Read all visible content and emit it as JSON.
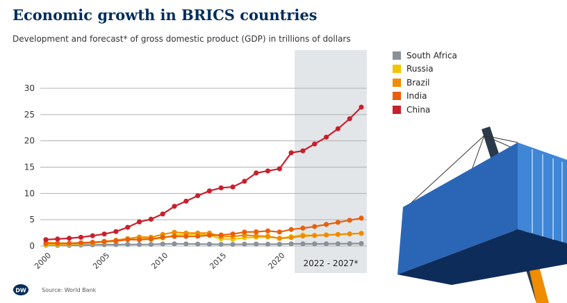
{
  "header": {
    "title": "Economic growth in BRICS countries",
    "subtitle": "Development and forecast* of gross domestic product (GDP) in trillions of dollars"
  },
  "footer": {
    "source": "Source: World Bank",
    "logo_text": "DW"
  },
  "forecast_label": "2022 - 2027*",
  "colors": {
    "grid": "#b0b0b0",
    "forecast_band": "#e3e6e9"
  },
  "chart_data": {
    "type": "line",
    "x": [
      2000,
      2001,
      2002,
      2003,
      2004,
      2005,
      2006,
      2007,
      2008,
      2009,
      2010,
      2011,
      2012,
      2013,
      2014,
      2015,
      2016,
      2017,
      2018,
      2019,
      2020,
      2021,
      2022,
      2023,
      2024,
      2025,
      2026,
      2027
    ],
    "xlim": [
      2000,
      2027
    ],
    "ylim": [
      0,
      30
    ],
    "x_ticks": [
      2000,
      2005,
      2010,
      2015,
      2020
    ],
    "y_ticks": [
      0,
      5,
      10,
      15,
      20,
      25,
      30
    ],
    "forecast_range": [
      2022,
      2027
    ],
    "grid": true,
    "legend_position": "top-right",
    "series": [
      {
        "name": "South Africa",
        "color": "#8a9199",
        "values": [
          0.14,
          0.12,
          0.12,
          0.18,
          0.23,
          0.26,
          0.27,
          0.3,
          0.29,
          0.3,
          0.38,
          0.42,
          0.4,
          0.37,
          0.35,
          0.32,
          0.3,
          0.35,
          0.37,
          0.35,
          0.34,
          0.42,
          0.41,
          0.4,
          0.42,
          0.43,
          0.45,
          0.47
        ]
      },
      {
        "name": "Russia",
        "color": "#f2c400",
        "values": [
          0.26,
          0.31,
          0.35,
          0.43,
          0.59,
          0.76,
          0.99,
          1.3,
          1.66,
          1.22,
          1.52,
          2.05,
          2.21,
          2.29,
          2.06,
          1.36,
          1.28,
          1.57,
          1.66,
          1.69,
          1.49,
          1.78,
          2.1,
          2.0,
          2.1,
          2.2,
          2.3,
          2.4
        ]
      },
      {
        "name": "Brazil",
        "color": "#f08c00",
        "values": [
          0.66,
          0.56,
          0.51,
          0.56,
          0.67,
          0.89,
          1.11,
          1.4,
          1.7,
          1.67,
          2.21,
          2.62,
          2.47,
          2.47,
          2.46,
          1.8,
          1.8,
          2.06,
          1.92,
          1.87,
          1.45,
          1.6,
          1.9,
          2.0,
          2.1,
          2.2,
          2.3,
          2.4
        ]
      },
      {
        "name": "India",
        "color": "#e8600d",
        "values": [
          0.47,
          0.49,
          0.51,
          0.61,
          0.71,
          0.82,
          0.94,
          1.22,
          1.2,
          1.34,
          1.68,
          1.82,
          1.83,
          1.86,
          2.04,
          2.1,
          2.29,
          2.65,
          2.7,
          2.87,
          2.67,
          3.15,
          3.4,
          3.7,
          4.1,
          4.5,
          4.9,
          5.3
        ]
      },
      {
        "name": "China",
        "color": "#c8202d",
        "values": [
          1.21,
          1.34,
          1.47,
          1.66,
          1.96,
          2.29,
          2.75,
          3.55,
          4.59,
          5.1,
          6.09,
          7.55,
          8.53,
          9.57,
          10.48,
          11.06,
          11.23,
          12.31,
          13.89,
          14.28,
          14.69,
          17.73,
          18.1,
          19.4,
          20.7,
          22.3,
          24.2,
          26.4
        ]
      }
    ]
  }
}
